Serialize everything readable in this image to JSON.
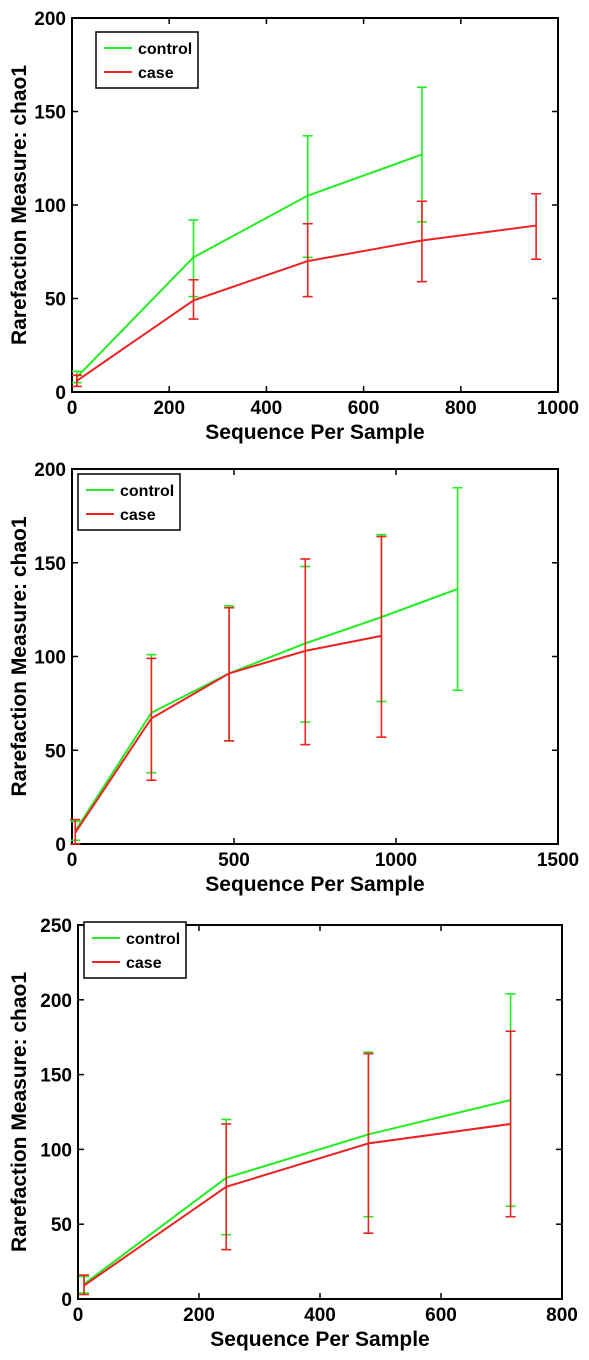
{
  "colors": {
    "control": "#22ee22",
    "case": "#ee2222",
    "axis": "#000000"
  },
  "chart_data": [
    {
      "type": "line",
      "xlabel": "Sequence Per Sample",
      "ylabel": "Rarefaction Measure: chao1",
      "xlim": [
        0,
        1000
      ],
      "ylim": [
        0,
        200
      ],
      "xticks": [
        "0",
        "200",
        "400",
        "600",
        "800",
        "1000"
      ],
      "yticks": [
        "0",
        "50",
        "100",
        "150",
        "200"
      ],
      "legend": {
        "position": "top-left",
        "entries": [
          "control",
          "case"
        ]
      },
      "grid": false,
      "series": [
        {
          "name": "control",
          "color": "#22ee22",
          "x": [
            10,
            250,
            485,
            720
          ],
          "y": [
            8,
            72,
            105,
            127
          ],
          "err_low": [
            5,
            51,
            72,
            91
          ],
          "err_high": [
            11,
            92,
            137,
            163
          ]
        },
        {
          "name": "case",
          "color": "#ee2222",
          "x": [
            10,
            250,
            485,
            720,
            955
          ],
          "y": [
            6,
            49,
            70,
            81,
            89
          ],
          "err_low": [
            3,
            39,
            51,
            59,
            71
          ],
          "err_high": [
            9,
            60,
            90,
            102,
            106
          ]
        }
      ]
    },
    {
      "type": "line",
      "xlabel": "Sequence Per Sample",
      "ylabel": "Rarefaction Measure: chao1",
      "xlim": [
        0,
        1500
      ],
      "ylim": [
        0,
        200
      ],
      "xticks": [
        "0",
        "500",
        "1000",
        "1500"
      ],
      "yticks": [
        "0",
        "50",
        "100",
        "150",
        "200"
      ],
      "legend": {
        "position": "top-left",
        "entries": [
          "control",
          "case"
        ]
      },
      "grid": false,
      "series": [
        {
          "name": "control",
          "color": "#22ee22",
          "x": [
            10,
            245,
            485,
            720,
            955,
            1190
          ],
          "y": [
            7,
            70,
            91,
            107,
            121,
            136
          ],
          "err_low": [
            2,
            38,
            55,
            65,
            76,
            82
          ],
          "err_high": [
            12,
            101,
            127,
            148,
            165,
            190
          ]
        },
        {
          "name": "case",
          "color": "#ee2222",
          "x": [
            10,
            245,
            485,
            720,
            955
          ],
          "y": [
            6,
            67,
            91,
            103,
            111
          ],
          "err_low": [
            0,
            34,
            55,
            53,
            57
          ],
          "err_high": [
            13,
            99,
            126,
            152,
            164
          ]
        }
      ]
    },
    {
      "type": "line",
      "xlabel": "Sequence Per Sample",
      "ylabel": "Rarefaction Measure: chao1",
      "xlim": [
        0,
        800
      ],
      "ylim": [
        0,
        250
      ],
      "xticks": [
        "0",
        "200",
        "400",
        "600",
        "800"
      ],
      "yticks": [
        "0",
        "50",
        "100",
        "150",
        "200",
        "250"
      ],
      "legend": {
        "position": "top-left",
        "entries": [
          "control",
          "case"
        ]
      },
      "grid": false,
      "series": [
        {
          "name": "control",
          "color": "#22ee22",
          "x": [
            10,
            245,
            480,
            715
          ],
          "y": [
            10,
            81,
            110,
            133
          ],
          "err_low": [
            4,
            43,
            55,
            62
          ],
          "err_high": [
            15,
            120,
            165,
            204
          ]
        },
        {
          "name": "case",
          "color": "#ee2222",
          "x": [
            10,
            245,
            480,
            715
          ],
          "y": [
            9,
            75,
            104,
            117
          ],
          "err_low": [
            3,
            33,
            44,
            55
          ],
          "err_high": [
            16,
            117,
            164,
            179
          ]
        }
      ]
    }
  ]
}
